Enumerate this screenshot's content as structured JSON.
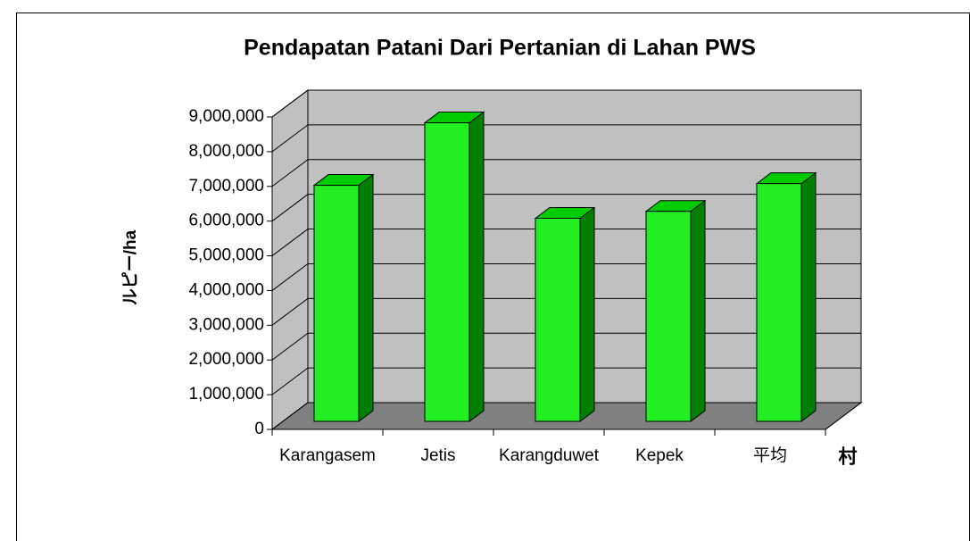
{
  "chart_data": {
    "type": "bar3d",
    "title": "Pendapatan Patani Dari Pertanian di Lahan PWS",
    "y_label": "ルピー/ha",
    "x_label": "村",
    "categories": [
      "Karangasem",
      "Jetis",
      "Karangduwet",
      "Kepek",
      "平均"
    ],
    "values": [
      6800000,
      8600000,
      5850000,
      6050000,
      6850000
    ],
    "color": "#22ee22",
    "ylim": [
      0,
      9000000
    ],
    "yticks": [
      0,
      {
        "value": 1000000,
        "label": "1,000,000"
      },
      {
        "value": 2000000,
        "label": "2,000,000"
      },
      {
        "value": 3000000,
        "label": "3,000,000"
      },
      {
        "value": 4000000,
        "label": "4,000,000"
      },
      {
        "value": 5000000,
        "label": "5,000,000"
      },
      {
        "value": 6000000,
        "label": "6,000,000"
      },
      {
        "value": 7000000,
        "label": "7,000,000"
      },
      {
        "value": 8000000,
        "label": "8,000,000"
      },
      {
        "value": 9000000,
        "label": "9,000,000"
      }
    ],
    "grid": true
  }
}
